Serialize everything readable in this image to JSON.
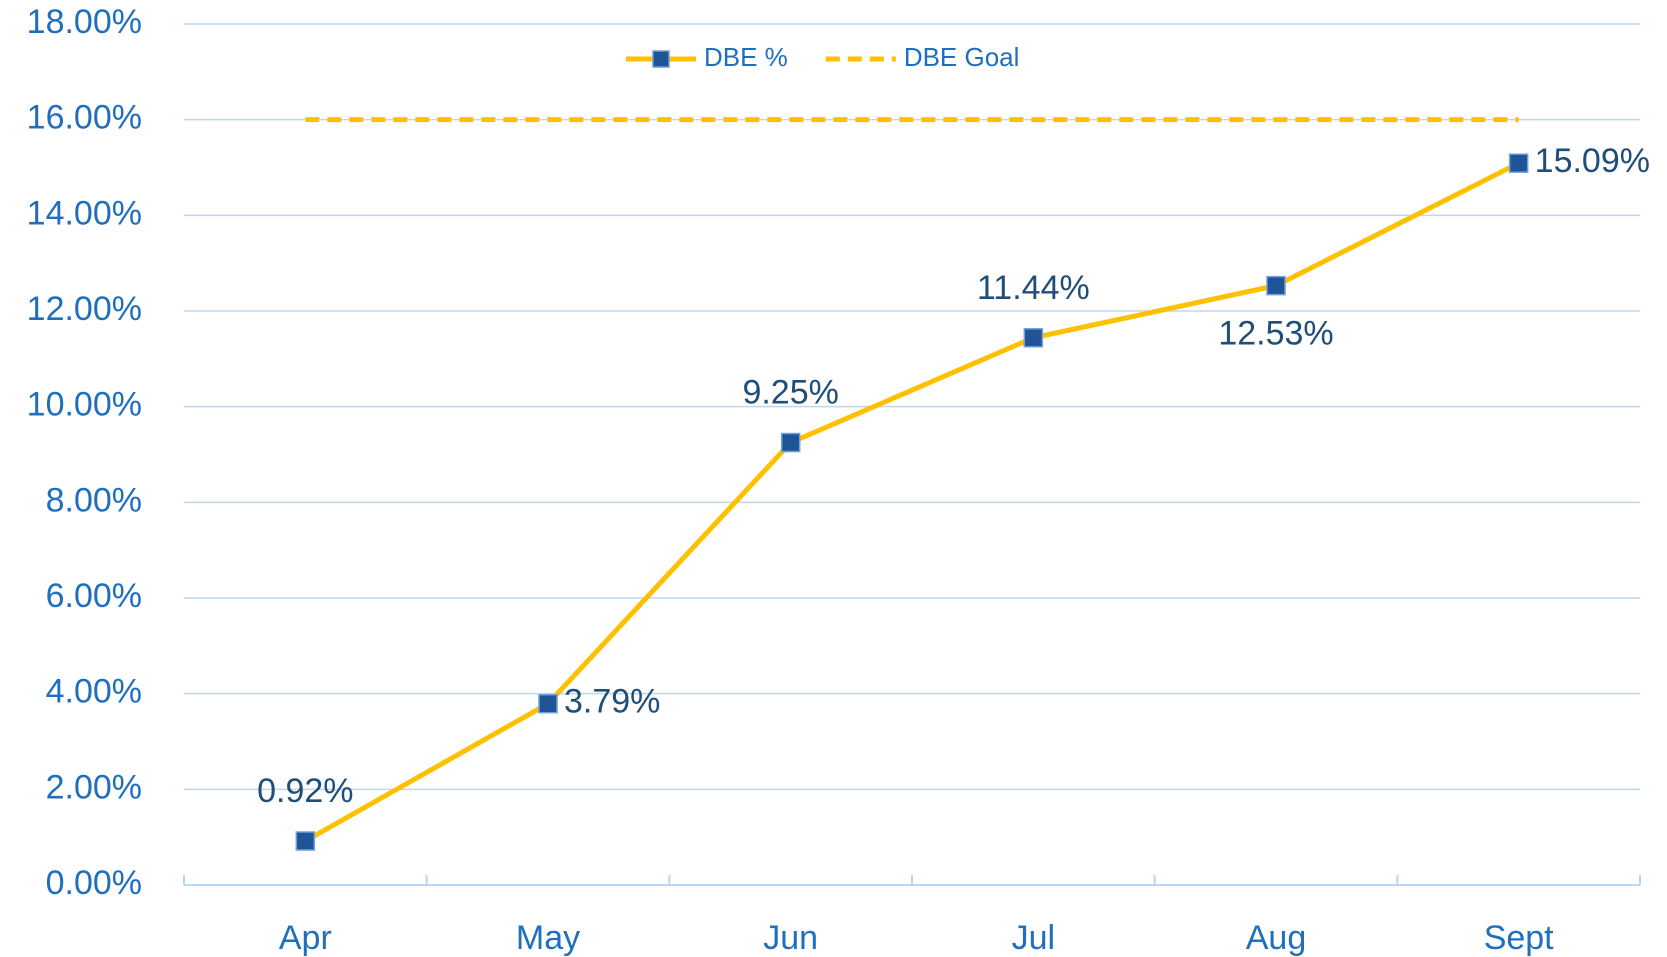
{
  "chart_data": {
    "type": "line",
    "categories": [
      "Apr",
      "May",
      "Jun",
      "Jul",
      "Aug",
      "Sept"
    ],
    "series": [
      {
        "name": "DBE %",
        "color": "#ffc000",
        "marker_color": "#1f5597",
        "values": [
          0.92,
          3.79,
          9.25,
          11.44,
          12.53,
          15.09
        ],
        "value_labels": [
          "0.92%",
          "3.79%",
          "9.25%",
          "11.44%",
          "12.53%",
          "15.09%"
        ]
      },
      {
        "name": "DBE Goal",
        "color": "#ffc000",
        "dashed": true,
        "values": [
          16,
          16,
          16,
          16,
          16,
          16
        ]
      }
    ],
    "ylim": [
      0,
      18
    ],
    "yticks": [
      {
        "value": 0,
        "label": "0.00%"
      },
      {
        "value": 2,
        "label": "2.00%"
      },
      {
        "value": 4,
        "label": "4.00%"
      },
      {
        "value": 6,
        "label": "6.00%"
      },
      {
        "value": 8,
        "label": "8.00%"
      },
      {
        "value": 10,
        "label": "10.00%"
      },
      {
        "value": 12,
        "label": "12.00%"
      },
      {
        "value": 14,
        "label": "14.00%"
      },
      {
        "value": 16,
        "label": "16.00%"
      },
      {
        "value": 18,
        "label": "18.00%"
      }
    ],
    "grid": true,
    "legend": "top"
  }
}
